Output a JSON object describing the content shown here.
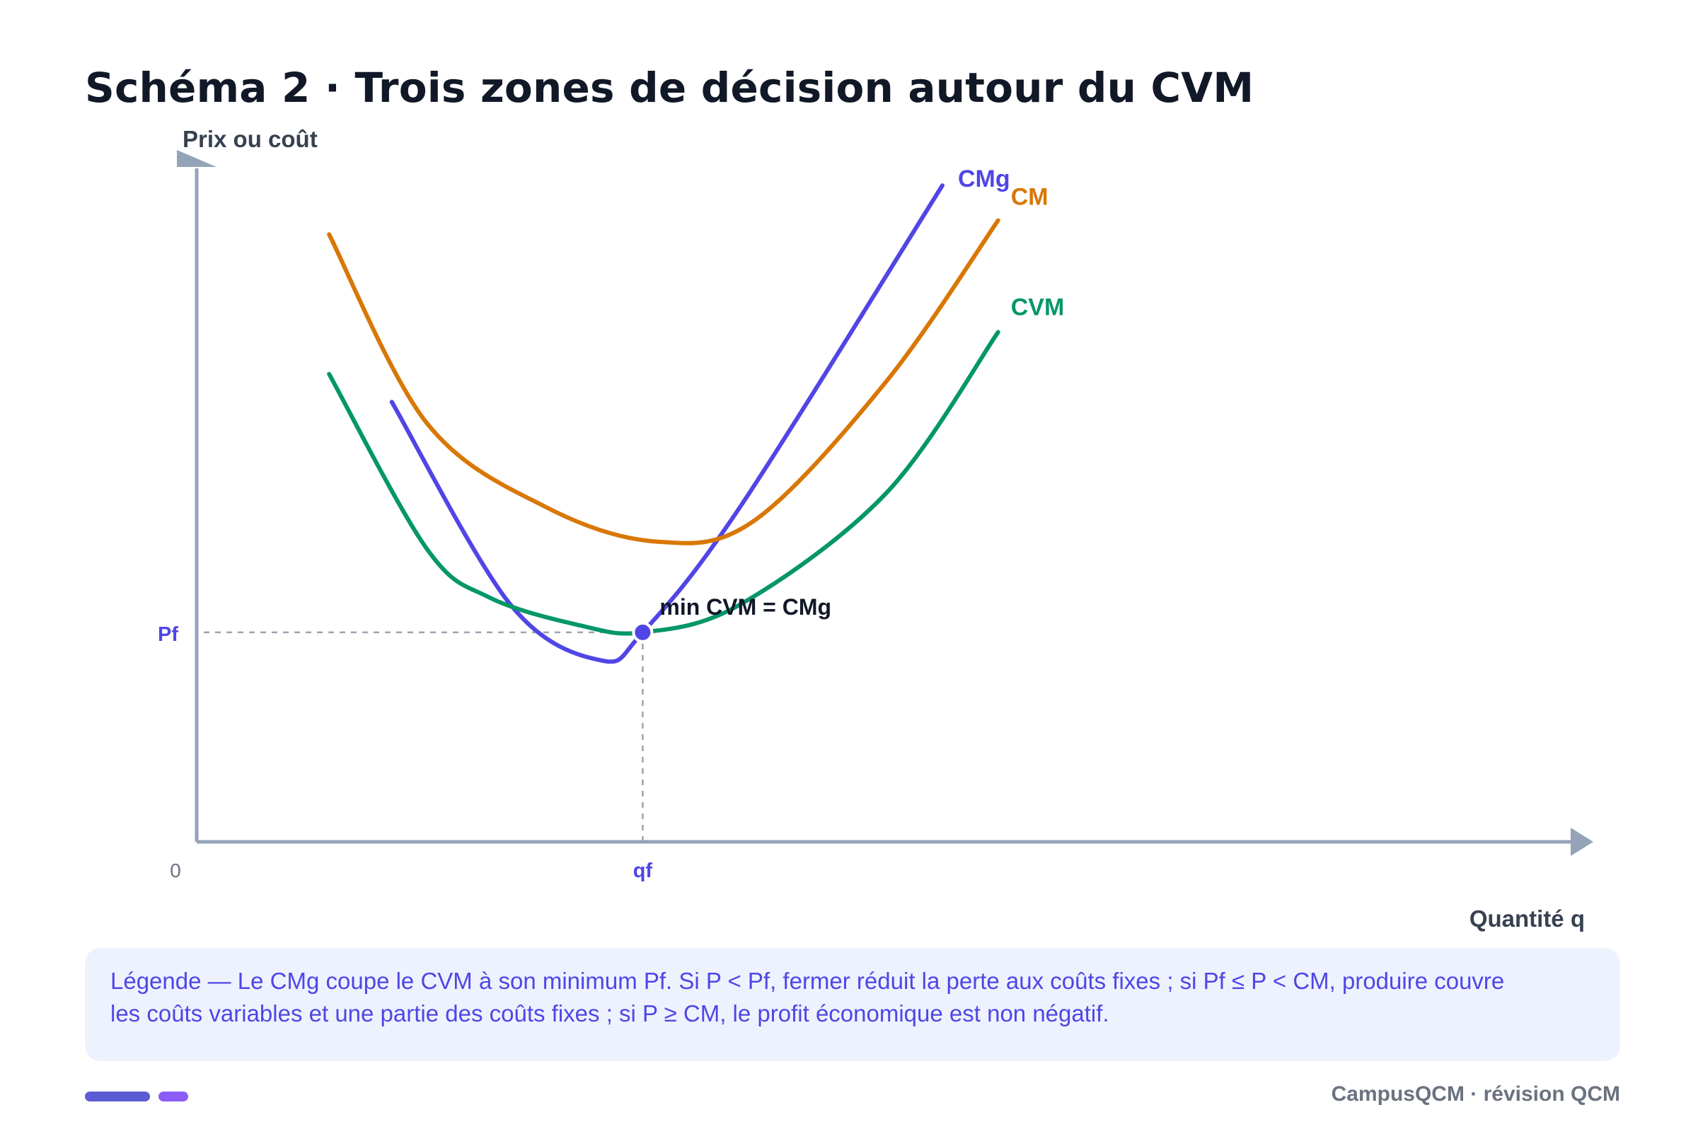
{
  "title": "Schéma 2 · Trois zones de décision autour du CVM",
  "chart_data": {
    "type": "line",
    "ylabel": "Prix ou coût",
    "xlabel": "Quantité q",
    "origin_label": "0",
    "x_ticks": [
      {
        "label": "qf",
        "x": 6.4
      }
    ],
    "y_ticks": [
      {
        "label": "Pf",
        "y": 3
      }
    ],
    "xlim": [
      0,
      13
    ],
    "ylim": [
      0,
      10
    ],
    "series": [
      {
        "name": "CMg",
        "color": "#5046e5",
        "x": [
          2.8,
          4.5,
          5.8,
          6.4,
          7.8,
          10.7
        ],
        "y": [
          6.3,
          3.4,
          2.6,
          3.0,
          4.8,
          9.4
        ]
      },
      {
        "name": "CM",
        "color": "#d97706",
        "x": [
          1.9,
          3.3,
          5.0,
          6.6,
          8.0,
          9.9,
          11.5
        ],
        "y": [
          8.7,
          6.0,
          4.8,
          4.3,
          4.6,
          6.6,
          8.9
        ]
      },
      {
        "name": "CVM",
        "color": "#059669",
        "x": [
          1.9,
          3.3,
          4.2,
          5.5,
          6.4,
          7.8,
          9.9,
          11.5
        ],
        "y": [
          6.7,
          4.2,
          3.5,
          3.1,
          3.0,
          3.4,
          5.0,
          7.3
        ]
      }
    ],
    "point": {
      "x": 6.4,
      "y": 3.0,
      "label": "min CVM = CMg"
    },
    "reference_lines": [
      {
        "axis": "y",
        "value": 3.0,
        "label": "Pf"
      },
      {
        "axis": "x",
        "value": 6.4,
        "label": "qf"
      }
    ],
    "grid": false
  },
  "legend_text": "Légende — Le CMg coupe le CVM à son minimum Pf. Si P < Pf, fermer réduit la perte aux coûts fixes ; si Pf ≤ P < CM, produire couvre les coûts variables et une partie des coûts fixes ; si P ≥ CM, le profit économique est non négatif.",
  "footer": "CampusQCM · révision QCM",
  "colors": {
    "axis": "#94a3b8",
    "accent": "#4f46e5",
    "title": "#111827",
    "legend_bg": "#eef2ff"
  }
}
